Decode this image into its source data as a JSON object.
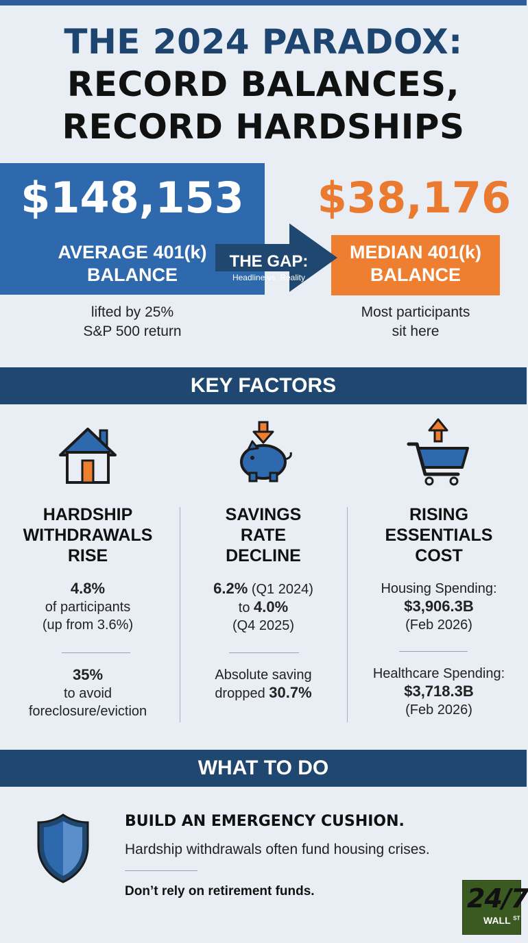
{
  "colors": {
    "navy": "#1f4770",
    "blue": "#2e68ad",
    "orange": "#ee7f30",
    "background": "#e9eef4"
  },
  "title": {
    "line1": "THE 2024 PARADOX:",
    "line2": "RECORD BALANCES,",
    "line3": "RECORD HARDSHIPS"
  },
  "average": {
    "amount": "$148,153",
    "label_line1": "AVERAGE 401(k)",
    "label_line2": "BALANCE",
    "note_line1": "lifted by 25%",
    "note_line2": "S&P 500 return"
  },
  "median": {
    "amount": "$38,176",
    "label_line1": "MEDIAN 401(k)",
    "label_line2": "BALANCE",
    "note_line1": "Most participants",
    "note_line2": "sit here"
  },
  "gap": {
    "title": "THE GAP:",
    "subtitle": "Headline vs. Reality"
  },
  "key_factors": {
    "heading": "KEY FACTORS",
    "hardship": {
      "icon": "house-icon",
      "title_line1": "HARDSHIP",
      "title_line2": "WITHDRAWALS",
      "title_line3": "RISE",
      "stat1_value": "4.8%",
      "stat1_line1": "of participants",
      "stat1_line2": "(up from 3.6%)",
      "stat2_value": "35%",
      "stat2_line1": "to avoid",
      "stat2_line2": "foreclosure/eviction"
    },
    "savings": {
      "icon": "piggy-bank-icon",
      "title_line1": "SAVINGS",
      "title_line2": "RATE",
      "title_line3": "DECLINE",
      "rate_start": "6.2%",
      "rate_start_period": " (Q1 2024)",
      "rate_to": "to ",
      "rate_end": "4.0%",
      "rate_end_period": "(Q4 2025)",
      "abs_line1": "Absolute saving",
      "abs_line2_prefix": "dropped ",
      "abs_value": "30.7%"
    },
    "essentials": {
      "icon": "shopping-cart-icon",
      "title_line1": "RISING",
      "title_line2": "ESSENTIALS",
      "title_line3": "COST",
      "housing_label": "Housing Spending:",
      "housing_value": "$3,906.3B",
      "housing_date": "(Feb 2026)",
      "health_label": "Healthcare Spending:",
      "health_value": "$3,718.3B",
      "health_date": "(Feb 2026)"
    }
  },
  "what_to_do": {
    "heading": "WHAT TO DO",
    "icon": "shield-icon",
    "title": "BUILD AN EMERGENCY CUSHION.",
    "subtitle": "Hardship withdrawals often fund housing crises.",
    "note": "Don’t rely on retirement funds."
  },
  "logo": {
    "number": "24/7",
    "word": "WALL",
    "suffix": "ST"
  }
}
